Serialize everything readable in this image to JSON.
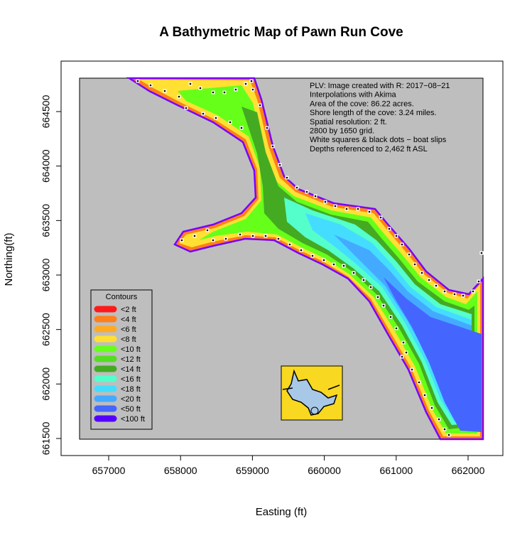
{
  "title": "A Bathymetric Map of  Pawn Run Cove",
  "xlabel": "Easting (ft)",
  "ylabel": "Northing(ft)",
  "x_ticks": [
    "657000",
    "658000",
    "659000",
    "660000",
    "661000",
    "662000"
  ],
  "x_tick_values": [
    657000,
    658000,
    659000,
    660000,
    661000,
    662000
  ],
  "y_ticks": [
    "661500",
    "662000",
    "662500",
    "663000",
    "663500",
    "664000",
    "664500"
  ],
  "y_tick_values": [
    661500,
    662000,
    662500,
    663000,
    663500,
    664000,
    664500
  ],
  "notes": [
    "PLV: Image created with R: 2017−08−21",
    "Interpolations with Akima",
    "Area of the cove: 86.22 acres.",
    "Shore length of the cove: 3.24 miles.",
    "Spatial resolution: 2 ft.",
    "2800 by 1650 grid.",
    "White squares & black dots − boat slips",
    "Depths referenced to 2,462 ft ASL"
  ],
  "legend": {
    "title": "Contours",
    "items": [
      {
        "label": "<2 ft",
        "color": "#ff1a1a"
      },
      {
        "label": "<4 ft",
        "color": "#ff7f1a"
      },
      {
        "label": "<6 ft",
        "color": "#ffaa22"
      },
      {
        "label": "<8 ft",
        "color": "#ffe033"
      },
      {
        "label": "<10 ft",
        "color": "#66ff1a"
      },
      {
        "label": "<12 ft",
        "color": "#55dd22"
      },
      {
        "label": "<14 ft",
        "color": "#44aa22"
      },
      {
        "label": "<16 ft",
        "color": "#55ffcc"
      },
      {
        "label": "<18 ft",
        "color": "#44ddff"
      },
      {
        "label": "<20 ft",
        "color": "#44aaff"
      },
      {
        "label": "<50 ft",
        "color": "#4466ff"
      },
      {
        "label": "<100 ft",
        "color": "#5500ff"
      }
    ]
  },
  "colors": {
    "land": "#bebebe",
    "shore": "#7a00ff",
    "inset_background": "#f8d820",
    "inset_water": "#a8c8e8"
  }
}
